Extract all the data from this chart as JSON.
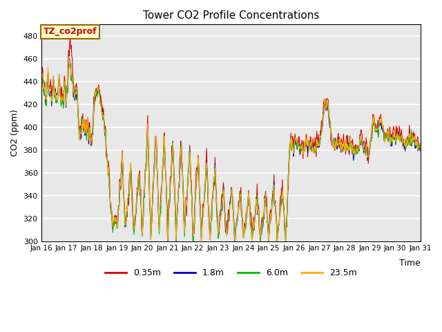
{
  "title": "Tower CO2 Profile Concentrations",
  "xlabel": "Time",
  "ylabel": "CO2 (ppm)",
  "ylim": [
    300,
    490
  ],
  "xlim": [
    0,
    360
  ],
  "annotation_text": "TZ_co2prof",
  "annotation_bg": "#ffffcc",
  "annotation_fg": "#cc0000",
  "annotation_border": "#996600",
  "bg_color": "#e8e8e8",
  "plot_bg": "#e8e8e8",
  "series": [
    {
      "label": "0.35m",
      "color": "#dd0000",
      "lw": 0.8
    },
    {
      "label": "1.8m",
      "color": "#0000cc",
      "lw": 0.8
    },
    {
      "label": "6.0m",
      "color": "#00bb00",
      "lw": 0.8
    },
    {
      "label": "23.5m",
      "color": "#ffaa00",
      "lw": 0.8
    }
  ],
  "xtick_labels": [
    "Jan 16",
    "Jan 17",
    "Jan 18",
    "Jan 19",
    "Jan 20",
    "Jan 21",
    "Jan 22",
    "Jan 23",
    "Jan 24",
    "Jan 25",
    "Jan 26",
    "Jan 27",
    "Jan 28",
    "Jan 29",
    "Jan 30",
    "Jan 31"
  ],
  "xtick_positions": [
    0,
    24,
    48,
    72,
    96,
    120,
    144,
    168,
    192,
    216,
    240,
    264,
    288,
    312,
    336,
    360
  ],
  "ytick_positions": [
    300,
    320,
    340,
    360,
    380,
    400,
    420,
    440,
    460,
    480
  ]
}
